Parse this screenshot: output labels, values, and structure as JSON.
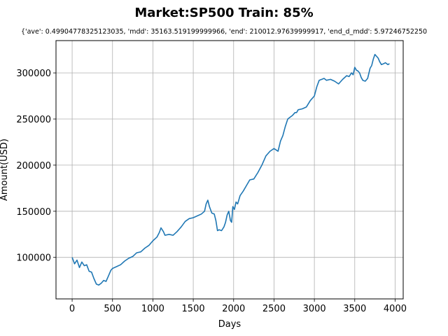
{
  "chart_data": {
    "type": "line",
    "title": "Market:SP500 Train: 85%",
    "subtitle": "{'ave': 0.49904778325123035, 'mdd': 35163.519199999966, 'end': 210012.97639999917, 'end_d_mdd': 5.97246752250",
    "xlabel": "Days",
    "ylabel": "Amount(USD)",
    "xlim": [
      -200,
      4100
    ],
    "ylim": [
      55000,
      335000
    ],
    "xticks": [
      "0",
      "500",
      "1000",
      "1500",
      "2000",
      "2500",
      "3000",
      "3500",
      "4000"
    ],
    "yticks": [
      "100000",
      "150000",
      "200000",
      "250000",
      "300000"
    ],
    "grid": true,
    "line_color": "#1f77b4",
    "series": [
      {
        "x": [
          0,
          30,
          60,
          90,
          120,
          150,
          180,
          210,
          240,
          270,
          300,
          330,
          360,
          390,
          420,
          450,
          480,
          500,
          550,
          600,
          650,
          700,
          750,
          800,
          850,
          900,
          950,
          1000,
          1050,
          1080,
          1100,
          1130,
          1150,
          1200,
          1250,
          1300,
          1350,
          1400,
          1450,
          1500,
          1550,
          1600,
          1640,
          1660,
          1680,
          1700,
          1730,
          1760,
          1780,
          1800,
          1820,
          1850,
          1880,
          1900,
          1920,
          1940,
          1960,
          1975,
          1990,
          2010,
          2030,
          2050,
          2080,
          2120,
          2160,
          2200,
          2250,
          2300,
          2350,
          2400,
          2450,
          2500,
          2550,
          2580,
          2610,
          2640,
          2670,
          2700,
          2730,
          2760,
          2780,
          2800,
          2850,
          2900,
          2950,
          3000,
          3030,
          3060,
          3090,
          3120,
          3150,
          3200,
          3250,
          3300,
          3350,
          3400,
          3430,
          3460,
          3480,
          3500,
          3520,
          3540,
          3560,
          3580,
          3600,
          3630,
          3660,
          3690,
          3710,
          3730,
          3750,
          3770,
          3790,
          3810,
          3830,
          3860,
          3880,
          3910,
          3930
        ],
        "y": [
          100000,
          93000,
          97000,
          89000,
          95000,
          91000,
          92000,
          85000,
          84000,
          77000,
          71000,
          70000,
          72000,
          75000,
          74000,
          80000,
          86000,
          88000,
          90000,
          92000,
          96000,
          99000,
          101000,
          105000,
          106000,
          110000,
          113000,
          118000,
          122000,
          127000,
          132000,
          128000,
          124000,
          125000,
          124000,
          128000,
          133000,
          139000,
          142000,
          143000,
          145000,
          147000,
          150000,
          158000,
          162000,
          155000,
          148000,
          147000,
          140000,
          129000,
          130000,
          129000,
          133000,
          138000,
          146000,
          150000,
          140000,
          138000,
          155000,
          152000,
          160000,
          158000,
          167000,
          172000,
          178000,
          184000,
          185000,
          192000,
          200000,
          210000,
          215000,
          218000,
          215000,
          226000,
          232000,
          242000,
          250000,
          252000,
          254000,
          257000,
          257000,
          260000,
          261000,
          263000,
          270000,
          275000,
          285000,
          292000,
          293000,
          294000,
          292000,
          293000,
          291000,
          288000,
          293000,
          297000,
          296000,
          300000,
          298000,
          306000,
          303000,
          302000,
          300000,
          295000,
          292000,
          291000,
          294000,
          305000,
          308000,
          315000,
          320000,
          318000,
          316000,
          312000,
          309000,
          310000,
          311000,
          309000,
          310000
        ]
      }
    ]
  }
}
